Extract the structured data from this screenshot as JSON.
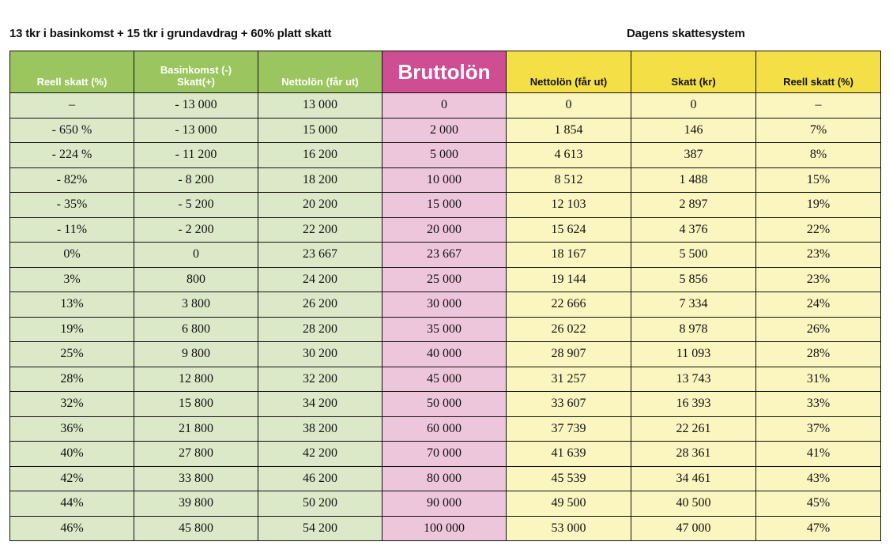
{
  "headings": {
    "left": "13 tkr i basinkomst + 15 tkr i grundavdrag + 60% platt skatt",
    "right": "Dagens skattesystem"
  },
  "columns": {
    "reell_skatt_left": "Reell skatt (%)",
    "basinkomst_line1": "Basinkomst (-)",
    "basinkomst_line2": "Skatt(+)",
    "nettolon_left": "Nettolön (får ut)",
    "bruttolon": "Bruttolön",
    "nettolon_right": "Nettolön (får ut)",
    "skatt_kr": "Skatt (kr)",
    "reell_skatt_right": "Reell skatt (%)"
  },
  "rows": [
    [
      "–",
      "- 13 000",
      "13 000",
      "0",
      "0",
      "0",
      "–"
    ],
    [
      "- 650 %",
      "- 13 000",
      "15 000",
      "2 000",
      "1 854",
      "146",
      "7%"
    ],
    [
      "- 224 %",
      "- 11 200",
      "16 200",
      "5 000",
      "4 613",
      "387",
      "8%"
    ],
    [
      "- 82%",
      "- 8 200",
      "18 200",
      "10 000",
      "8 512",
      "1 488",
      "15%"
    ],
    [
      "- 35%",
      "- 5 200",
      "20 200",
      "15 000",
      "12 103",
      "2 897",
      "19%"
    ],
    [
      "- 11%",
      "- 2 200",
      "22 200",
      "20 000",
      "15 624",
      "4 376",
      "22%"
    ],
    [
      "0%",
      "0",
      "23 667",
      "23 667",
      "18 167",
      "5 500",
      "23%"
    ],
    [
      "3%",
      "800",
      "24 200",
      "25 000",
      "19 144",
      "5 856",
      "23%"
    ],
    [
      "13%",
      "3 800",
      "26 200",
      "30 000",
      "22 666",
      "7 334",
      "24%"
    ],
    [
      "19%",
      "6 800",
      "28 200",
      "35 000",
      "26 022",
      "8 978",
      "26%"
    ],
    [
      "25%",
      "9 800",
      "30 200",
      "40 000",
      "28 907",
      "11 093",
      "28%"
    ],
    [
      "28%",
      "12 800",
      "32 200",
      "45 000",
      "31 257",
      "13 743",
      "31%"
    ],
    [
      "32%",
      "15 800",
      "34 200",
      "50 000",
      "33 607",
      "16 393",
      "33%"
    ],
    [
      "36%",
      "21 800",
      "38 200",
      "60 000",
      "37 739",
      "22 261",
      "37%"
    ],
    [
      "40%",
      "27 800",
      "42 200",
      "70 000",
      "41 639",
      "28 361",
      "41%"
    ],
    [
      "42%",
      "33 800",
      "46 200",
      "80 000",
      "45 539",
      "34 461",
      "43%"
    ],
    [
      "44%",
      "39 800",
      "50 200",
      "90 000",
      "49 500",
      "40 500",
      "45%"
    ],
    [
      "46%",
      "45 800",
      "54 200",
      "100 000",
      "53 000",
      "47 000",
      "47%"
    ]
  ]
}
